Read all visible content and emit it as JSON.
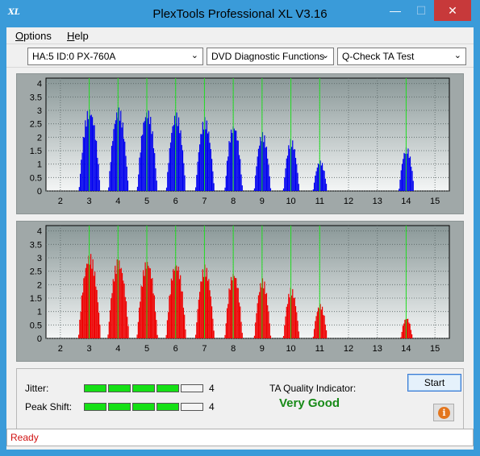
{
  "window": {
    "title": "PlexTools Professional XL V3.16",
    "icon_label": "XL",
    "min_symbol": "—",
    "max_symbol": "☐",
    "close_symbol": "✕"
  },
  "menu": {
    "options": "Options",
    "help": "Help"
  },
  "toolbar": {
    "drive": "HA:5 ID:0  PX-760A",
    "function": "DVD Diagnostic Functions",
    "test": "Q-Check TA Test",
    "arrow": "⌄"
  },
  "charts": {
    "y_ticks": [
      "4",
      "3.5",
      "3",
      "2.5",
      "2",
      "1.5",
      "1",
      "0.5",
      "0"
    ],
    "x_ticks": [
      "2",
      "3",
      "4",
      "5",
      "6",
      "7",
      "8",
      "9",
      "10",
      "11",
      "12",
      "13",
      "14",
      "15"
    ],
    "top_color": "#0000ee",
    "bottom_color": "#ee0000",
    "marker_color": "#22dd22"
  },
  "chart_data": [
    {
      "type": "area",
      "series_color": "#0000ee",
      "xlim": [
        1.5,
        15.5
      ],
      "ylim": [
        0,
        4.2
      ],
      "green_markers": [
        3,
        4,
        5,
        6,
        7,
        8,
        9,
        10,
        11,
        14
      ],
      "peaks": [
        {
          "center": 3.0,
          "height": 3.15,
          "width": 0.36
        },
        {
          "center": 4.0,
          "height": 3.15,
          "width": 0.34
        },
        {
          "center": 5.0,
          "height": 3.1,
          "width": 0.34
        },
        {
          "center": 6.0,
          "height": 2.95,
          "width": 0.33
        },
        {
          "center": 7.0,
          "height": 2.75,
          "width": 0.32
        },
        {
          "center": 8.0,
          "height": 2.55,
          "width": 0.3
        },
        {
          "center": 9.0,
          "height": 2.2,
          "width": 0.28
        },
        {
          "center": 10.0,
          "height": 1.95,
          "width": 0.27
        },
        {
          "center": 11.0,
          "height": 1.15,
          "width": 0.24
        },
        {
          "center": 14.0,
          "height": 1.65,
          "width": 0.26
        }
      ]
    },
    {
      "type": "area",
      "series_color": "#ee0000",
      "xlim": [
        1.5,
        15.5
      ],
      "ylim": [
        0,
        4.2
      ],
      "green_markers": [
        3,
        4,
        5,
        6,
        7,
        8,
        9,
        10,
        11,
        14
      ],
      "peaks": [
        {
          "center": 3.0,
          "height": 3.2,
          "width": 0.38
        },
        {
          "center": 4.0,
          "height": 3.0,
          "width": 0.36
        },
        {
          "center": 5.0,
          "height": 3.0,
          "width": 0.35
        },
        {
          "center": 6.0,
          "height": 2.9,
          "width": 0.34
        },
        {
          "center": 7.0,
          "height": 2.75,
          "width": 0.32
        },
        {
          "center": 8.0,
          "height": 2.55,
          "width": 0.3
        },
        {
          "center": 9.0,
          "height": 2.25,
          "width": 0.28
        },
        {
          "center": 10.0,
          "height": 1.9,
          "width": 0.27
        },
        {
          "center": 11.0,
          "height": 1.3,
          "width": 0.24
        },
        {
          "center": 14.0,
          "height": 0.8,
          "width": 0.2
        }
      ]
    }
  ],
  "results": {
    "jitter_label": "Jitter:",
    "jitter_value": "4",
    "jitter_level": 4,
    "peak_shift_label": "Peak Shift:",
    "peak_shift_value": "4",
    "peak_shift_level": 4,
    "segments_total": 5,
    "quality_label": "TA Quality Indicator:",
    "quality_value": "Very Good",
    "start_label": "Start",
    "info_symbol": "i"
  },
  "status": {
    "text": "Ready"
  }
}
